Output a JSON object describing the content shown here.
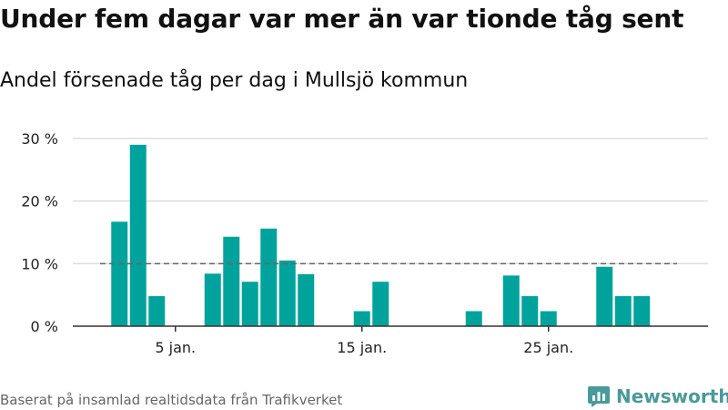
{
  "header": {
    "title": "Under fem dagar var mer än var tionde tåg sent",
    "subtitle": "Andel försenade tåg per dag i Mullsjö kommun"
  },
  "footer": {
    "source": "Baserat på insamlad realtidsdata från Trafikverket",
    "brand": "Newsworthy"
  },
  "colors": {
    "bar": "#00a39b",
    "grid": "#dddddd",
    "reference": "#666666",
    "brand": "#4a9a9a"
  },
  "chart_data": {
    "type": "bar",
    "title": "Andel försenade tåg per dag i Mullsjö kommun",
    "xlabel": "",
    "ylabel": "",
    "x_unit": "day of January",
    "x": [
      1,
      2,
      3,
      4,
      5,
      6,
      7,
      8,
      9,
      10,
      11,
      12,
      13,
      14,
      15,
      16,
      17,
      18,
      19,
      20,
      21,
      22,
      23,
      24,
      25,
      26,
      27,
      28,
      29,
      30,
      31
    ],
    "values": [
      0,
      16.7,
      29,
      4.8,
      0,
      0,
      8.4,
      14.3,
      7.1,
      15.6,
      10.5,
      8.3,
      0,
      0,
      2.4,
      7.1,
      0,
      0,
      0,
      0,
      2.4,
      0,
      8.1,
      4.8,
      2.4,
      0,
      0,
      9.5,
      4.8,
      4.8,
      0
    ],
    "x_ticks": [
      {
        "x": 5,
        "label": "5 jan."
      },
      {
        "x": 15,
        "label": "15 jan."
      },
      {
        "x": 25,
        "label": "25 jan."
      }
    ],
    "y_ticks": [
      {
        "y": 0,
        "label": "0 %"
      },
      {
        "y": 10,
        "label": "10 %"
      },
      {
        "y": 20,
        "label": "20 %"
      },
      {
        "y": 30,
        "label": "30 %"
      }
    ],
    "ylim": [
      0,
      30
    ],
    "reference_line": {
      "y": 10,
      "style": "dashed"
    },
    "grid": true,
    "legend": "none"
  }
}
